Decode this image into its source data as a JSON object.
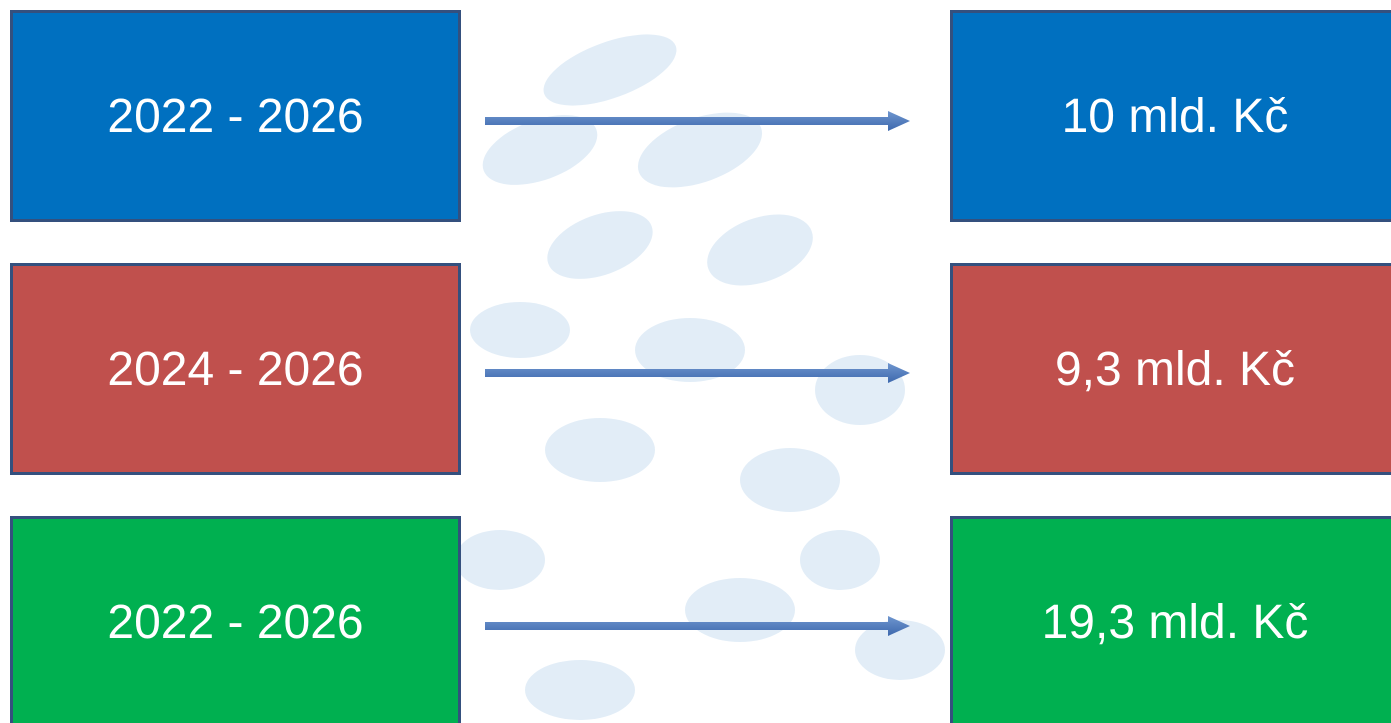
{
  "rows": [
    {
      "period": "2022 - 2026",
      "amount": "10 mld. Kč"
    },
    {
      "period": "2024 - 2026",
      "amount": "9,3 mld. Kč"
    },
    {
      "period": "2022 - 2026",
      "amount": "19,3 mld. Kč"
    }
  ]
}
